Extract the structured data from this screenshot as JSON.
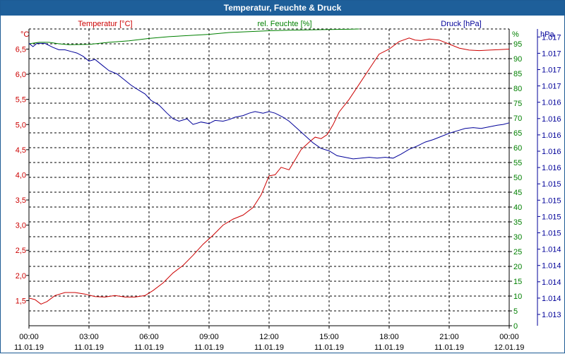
{
  "window": {
    "title": "Temperatur, Feuchte & Druck"
  },
  "colors": {
    "temperature": "#cc0000",
    "humidity": "#008000",
    "pressure": "#000099",
    "titlebar": "#1e5f9a",
    "grid": "#000000"
  },
  "chart_data": {
    "type": "line",
    "title": "Temperatur, Feuchte & Druck",
    "axes": {
      "temperature": {
        "label": "Temperatur [°C]",
        "unit": "°C",
        "range": [
          1.0,
          6.9
        ],
        "ticks": [
          "1,5",
          "2,0",
          "2,5",
          "3,0",
          "3,5",
          "4,0",
          "4,5",
          "5,0",
          "5,5",
          "6,0",
          "6,5"
        ],
        "tick_values": [
          1.5,
          2.0,
          2.5,
          3.0,
          3.5,
          4.0,
          4.5,
          5.0,
          5.5,
          6.0,
          6.5
        ]
      },
      "humidity": {
        "label": "rel. Feuchte [%]",
        "unit": "%",
        "range": [
          0,
          100
        ],
        "ticks": [
          "0",
          "5",
          "10",
          "15",
          "20",
          "25",
          "30",
          "35",
          "40",
          "45",
          "50",
          "55",
          "60",
          "65",
          "70",
          "75",
          "80",
          "85",
          "90",
          "95"
        ],
        "tick_values": [
          0,
          5,
          10,
          15,
          20,
          25,
          30,
          35,
          40,
          45,
          50,
          55,
          60,
          65,
          70,
          75,
          80,
          85,
          90,
          95
        ]
      },
      "pressure": {
        "label": "Druck [hPa]",
        "unit": "hPa",
        "range": [
          1013.6,
          1017.3
        ],
        "ticks": [
          "1.013",
          "1.014",
          "1.014",
          "1.014",
          "1.014",
          "1.015",
          "1.015",
          "1.015",
          "1.015",
          "1.016",
          "1.016",
          "1.016",
          "1.016",
          "1.016",
          "1.017",
          "1.017",
          "1.017",
          "1.017"
        ]
      },
      "x": {
        "range": [
          0,
          24
        ],
        "ticks": [
          {
            "time": "00:00",
            "date": "11.01.19",
            "hour": 0
          },
          {
            "time": "03:00",
            "date": "11.01.19",
            "hour": 3
          },
          {
            "time": "06:00",
            "date": "11.01.19",
            "hour": 6
          },
          {
            "time": "09:00",
            "date": "11.01.19",
            "hour": 9
          },
          {
            "time": "12:00",
            "date": "11.01.19",
            "hour": 12
          },
          {
            "time": "15:00",
            "date": "11.01.19",
            "hour": 15
          },
          {
            "time": "18:00",
            "date": "11.01.19",
            "hour": 18
          },
          {
            "time": "21:00",
            "date": "11.01.19",
            "hour": 21
          },
          {
            "time": "00:00",
            "date": "12.01.19",
            "hour": 24
          }
        ]
      }
    },
    "series": [
      {
        "name": "Temperatur [°C]",
        "axis": "temperature",
        "hours": [
          0,
          0.3,
          0.6,
          0.9,
          1.3,
          1.8,
          2.3,
          2.8,
          3.3,
          3.8,
          4.3,
          4.8,
          5.3,
          5.8,
          6.2,
          6.7,
          7.2,
          7.7,
          8.2,
          8.7,
          9.2,
          9.7,
          10.2,
          10.7,
          11.2,
          11.6,
          12.0,
          12.3,
          12.6,
          13.0,
          13.3,
          13.6,
          14.0,
          14.3,
          14.6,
          14.9,
          15.2,
          15.5,
          16.0,
          16.5,
          17.0,
          17.5,
          18.0,
          18.5,
          19.0,
          19.3,
          19.6,
          20.0,
          20.5,
          21.0,
          21.5,
          22.0,
          22.5,
          23.0,
          23.5,
          24.0
        ],
        "values": [
          1.55,
          1.52,
          1.43,
          1.48,
          1.6,
          1.66,
          1.66,
          1.63,
          1.58,
          1.57,
          1.6,
          1.57,
          1.57,
          1.6,
          1.7,
          1.85,
          2.05,
          2.2,
          2.4,
          2.62,
          2.8,
          3.0,
          3.12,
          3.2,
          3.35,
          3.6,
          3.98,
          4.0,
          4.15,
          4.1,
          4.3,
          4.5,
          4.65,
          4.75,
          4.72,
          4.8,
          5.0,
          5.25,
          5.5,
          5.8,
          6.1,
          6.4,
          6.5,
          6.65,
          6.72,
          6.68,
          6.67,
          6.7,
          6.68,
          6.6,
          6.52,
          6.48,
          6.47,
          6.48,
          6.49,
          6.5
        ]
      },
      {
        "name": "rel. Feuchte [%]",
        "axis": "humidity",
        "hours": [
          0,
          0.5,
          1.0,
          1.5,
          2.0,
          3.0,
          4.0,
          5.0,
          6.0,
          7.0,
          8.0,
          9.0,
          10.0,
          11.0,
          12.0,
          13.0,
          14.0,
          15.0,
          16.0,
          16.5
        ],
        "values": [
          95,
          95.5,
          95.5,
          95,
          94.7,
          94.8,
          95.5,
          96,
          96.8,
          97.4,
          97.8,
          98.2,
          98.8,
          99.1,
          99.4,
          99.6,
          99.7,
          99.8,
          99.9,
          100
        ]
      },
      {
        "name": "Druck [hPa]",
        "axis": "pressure",
        "hours": [
          0,
          0.2,
          0.4,
          0.8,
          1.2,
          1.5,
          1.8,
          2.1,
          2.4,
          2.7,
          3.0,
          3.3,
          3.7,
          4.0,
          4.4,
          4.8,
          5.1,
          5.4,
          5.8,
          6.1,
          6.5,
          6.9,
          7.2,
          7.5,
          7.9,
          8.2,
          8.6,
          9.0,
          9.3,
          9.7,
          10.0,
          10.3,
          10.7,
          11.0,
          11.3,
          11.7,
          12.0,
          12.3,
          12.7,
          13.0,
          13.4,
          13.8,
          14.2,
          14.6,
          15.0,
          15.4,
          15.8,
          16.2,
          16.6,
          17.0,
          17.4,
          17.8,
          18.2,
          18.6,
          19.0,
          19.4,
          19.8,
          20.2,
          20.6,
          21.0,
          21.4,
          21.8,
          22.2,
          22.6,
          23.0,
          23.4,
          23.7,
          24.0
        ],
        "values": [
          1017.12,
          1017.08,
          1017.12,
          1017.12,
          1017.07,
          1017.04,
          1017.04,
          1017.02,
          1017.0,
          1016.96,
          1016.9,
          1016.92,
          1016.84,
          1016.78,
          1016.74,
          1016.66,
          1016.6,
          1016.55,
          1016.49,
          1016.41,
          1016.35,
          1016.25,
          1016.18,
          1016.15,
          1016.18,
          1016.11,
          1016.14,
          1016.12,
          1016.16,
          1016.15,
          1016.17,
          1016.2,
          1016.22,
          1016.25,
          1016.27,
          1016.25,
          1016.27,
          1016.25,
          1016.2,
          1016.15,
          1016.06,
          1015.97,
          1015.88,
          1015.81,
          1015.78,
          1015.72,
          1015.7,
          1015.68,
          1015.69,
          1015.7,
          1015.69,
          1015.7,
          1015.69,
          1015.74,
          1015.8,
          1015.84,
          1015.89,
          1015.92,
          1015.96,
          1016.0,
          1016.03,
          1016.06,
          1016.07,
          1016.06,
          1016.08,
          1016.1,
          1016.11,
          1016.13
        ]
      }
    ]
  }
}
